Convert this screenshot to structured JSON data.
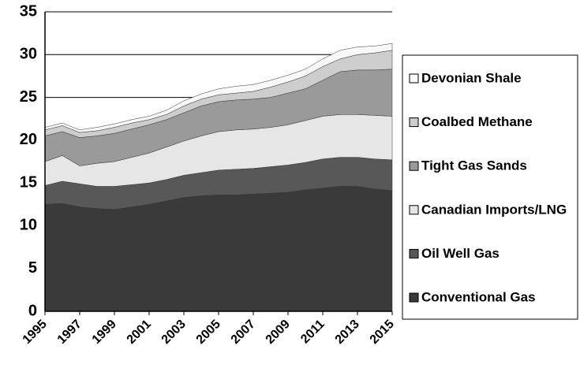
{
  "chart_data": {
    "type": "stacked_area",
    "x": [
      1995,
      1996,
      1997,
      1998,
      1999,
      2000,
      2001,
      2002,
      2003,
      2004,
      2005,
      2006,
      2007,
      2008,
      2009,
      2010,
      2011,
      2012,
      2013,
      2014,
      2015
    ],
    "xlim": [
      1995,
      2015
    ],
    "xticks": [
      1995,
      1997,
      1999,
      2001,
      2003,
      2005,
      2007,
      2009,
      2011,
      2013,
      2015
    ],
    "ylim": [
      0,
      35
    ],
    "yticks": [
      0,
      5,
      10,
      15,
      20,
      25,
      30,
      35
    ],
    "grid": true,
    "legend": "right",
    "series": [
      {
        "name": "Conventional Gas",
        "color": "#3a3a3a",
        "values": [
          12.5,
          12.6,
          12.2,
          12.0,
          11.9,
          12.2,
          12.5,
          12.9,
          13.3,
          13.5,
          13.6,
          13.6,
          13.7,
          13.8,
          13.9,
          14.2,
          14.4,
          14.6,
          14.6,
          14.3,
          14.1
        ]
      },
      {
        "name": "Oil Well Gas",
        "color": "#585858",
        "values": [
          2.2,
          2.6,
          2.7,
          2.6,
          2.7,
          2.6,
          2.5,
          2.5,
          2.6,
          2.7,
          2.9,
          3.0,
          3.0,
          3.1,
          3.2,
          3.2,
          3.4,
          3.4,
          3.4,
          3.5,
          3.6
        ]
      },
      {
        "name": "Canadian Imports/LNG",
        "color": "#e6e6e6",
        "values": [
          2.8,
          3.0,
          2.1,
          2.7,
          2.9,
          3.2,
          3.5,
          3.8,
          4.0,
          4.3,
          4.5,
          4.6,
          4.6,
          4.6,
          4.7,
          4.9,
          5.0,
          5.0,
          5.0,
          5.1,
          5.1
        ]
      },
      {
        "name": "Tight Gas Sands",
        "color": "#9a9a9a",
        "values": [
          3.0,
          2.8,
          3.3,
          3.2,
          3.3,
          3.3,
          3.3,
          3.2,
          3.3,
          3.5,
          3.5,
          3.5,
          3.5,
          3.5,
          3.7,
          3.7,
          4.2,
          5.0,
          5.2,
          5.3,
          5.5
        ]
      },
      {
        "name": "Coalbed Methane",
        "color": "#cdcdcd",
        "values": [
          0.7,
          0.7,
          0.6,
          0.6,
          0.7,
          0.7,
          0.6,
          0.6,
          0.8,
          0.8,
          0.8,
          0.8,
          0.9,
          1.2,
          1.3,
          1.5,
          1.6,
          1.5,
          1.8,
          2.0,
          2.2
        ]
      },
      {
        "name": "Devonian Shale",
        "color": "#f8f8f8",
        "values": [
          0.3,
          0.3,
          0.3,
          0.4,
          0.4,
          0.4,
          0.4,
          0.5,
          0.6,
          0.6,
          0.7,
          0.8,
          0.8,
          0.8,
          0.8,
          0.8,
          0.9,
          1.0,
          0.9,
          0.8,
          0.8
        ]
      }
    ]
  }
}
